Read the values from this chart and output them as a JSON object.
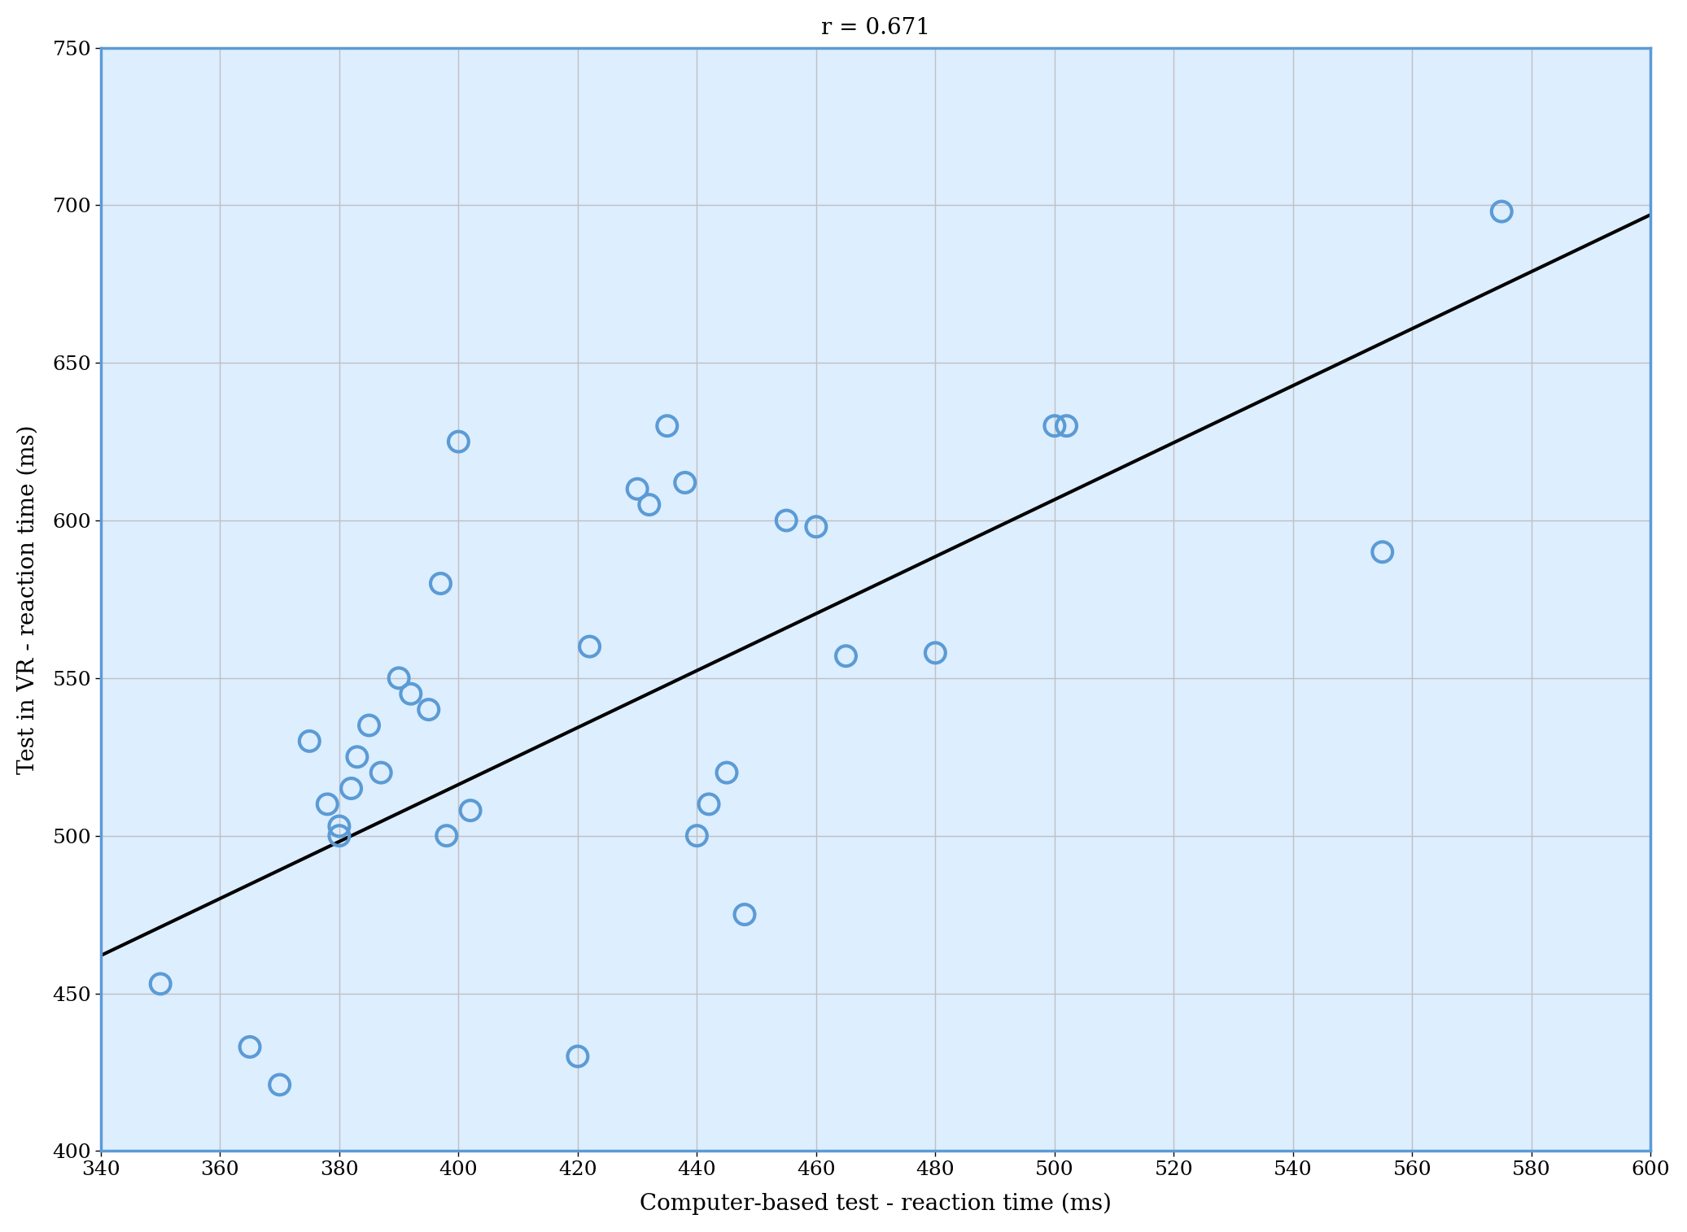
{
  "x": [
    350,
    365,
    370,
    375,
    378,
    380,
    380,
    382,
    383,
    385,
    387,
    390,
    392,
    395,
    397,
    398,
    400,
    402,
    420,
    422,
    430,
    432,
    435,
    438,
    440,
    442,
    445,
    448,
    455,
    460,
    465,
    480,
    500,
    502,
    555,
    575
  ],
  "y": [
    453,
    433,
    421,
    530,
    510,
    500,
    503,
    515,
    525,
    535,
    520,
    550,
    545,
    540,
    580,
    500,
    625,
    508,
    430,
    560,
    610,
    605,
    630,
    612,
    500,
    510,
    520,
    475,
    600,
    598,
    557,
    558,
    630,
    630,
    590,
    698
  ],
  "title": "r = 0.671",
  "xlabel": "Computer-based test - reaction time (ms)",
  "ylabel": "Test in VR - reaction time (ms)",
  "xlim": [
    340,
    600
  ],
  "ylim": [
    400,
    750
  ],
  "xticks": [
    340,
    360,
    380,
    400,
    420,
    440,
    460,
    480,
    500,
    520,
    540,
    560,
    580,
    600
  ],
  "yticks": [
    400,
    450,
    500,
    550,
    600,
    650,
    700,
    750
  ],
  "scatter_color": "#5B9BD5",
  "line_color": "#000000",
  "line_x": [
    340,
    600
  ],
  "line_y": [
    462,
    697
  ],
  "marker_size": 320,
  "marker_linewidth": 3.0,
  "title_fontsize": 20,
  "label_fontsize": 20,
  "tick_fontsize": 18,
  "spine_color": "#5B9BD5",
  "grid_color": "#C0C0C0",
  "background_color": "#DDEEFF",
  "fig_background": "#FFFFFF"
}
